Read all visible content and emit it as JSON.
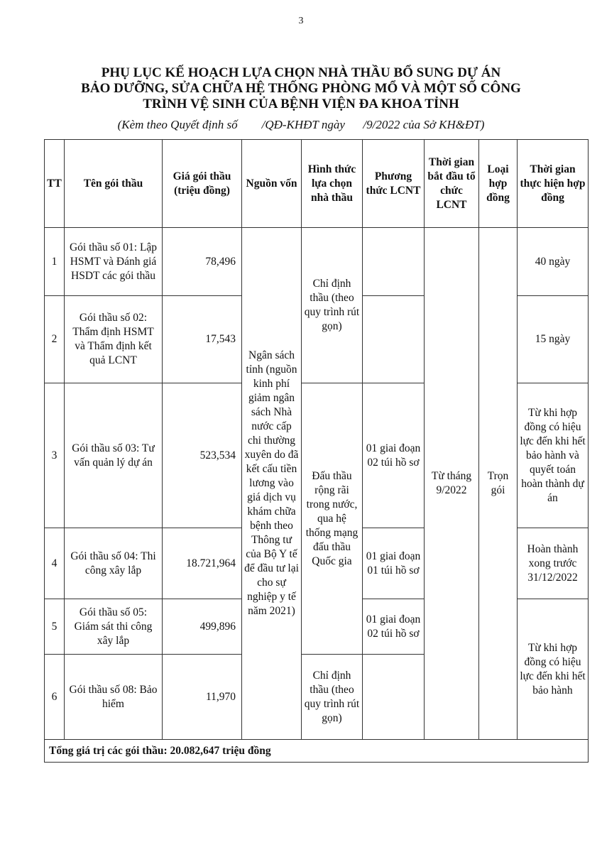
{
  "page_number": "3",
  "title_lines": [
    "PHỤ LỤC KẾ HOẠCH LỰA CHỌN NHÀ THẦU BỔ SUNG DỰ ÁN",
    "BẢO DƯỠNG, SỬA CHỮA HỆ THỐNG PHÒNG MỔ VÀ MỘT SỐ CÔNG",
    "TRÌNH VỆ SINH CỦA BỆNH VIỆN ĐA KHOA TỈNH"
  ],
  "subtitle": "(Kèm theo Quyết định số        /QĐ-KHĐT ngày      /9/2022 của Sở KH&ĐT)",
  "headers": [
    "TT",
    "Tên gói thầu",
    "Giá gói thầu (triệu đồng)",
    "Nguồn vốn",
    "Hình thức lựa chọn nhà thầu",
    "Phương thức LCNT",
    "Thời gian bắt đầu tổ chức LCNT",
    "Loại hợp đồng",
    "Thời gian thực hiện hợp đồng"
  ],
  "rows": [
    {
      "tt": "1",
      "name": "Gói thầu số 01: Lập HSMT và Đánh giá HSDT các gói thầu",
      "price": "78,496",
      "method": "",
      "duration": "40 ngày"
    },
    {
      "tt": "2",
      "name": "Gói thầu số 02: Thẩm định HSMT và Thẩm định kết quả LCNT",
      "price": "17,543",
      "method": "",
      "duration": "15 ngày"
    },
    {
      "tt": "3",
      "name": "Gói thầu số 03: Tư vấn quản lý dự án",
      "price": "523,534",
      "method": "01 giai đoạn 02 túi hồ sơ",
      "duration": "Từ khi hợp đồng có hiệu lực đến khi hết bảo hành và quyết toán hoàn thành dự án"
    },
    {
      "tt": "4",
      "name": "Gói thầu số 04: Thi công xây lắp",
      "price": "18.721,964",
      "method": "01 giai đoạn 01 túi hồ sơ",
      "duration": "Hoàn thành xong trước 31/12/2022"
    },
    {
      "tt": "5",
      "name": "Gói thầu số 05: Giám sát thi công xây lắp",
      "price": "499,896",
      "method": "01 giai đoạn 02 túi hồ sơ",
      "duration": "Từ khi hợp đồng có hiệu lực đến khi hết bảo hành"
    },
    {
      "tt": "6",
      "name": "Gói thầu số 08: Bảo hiểm",
      "price": "11,970",
      "method": ""
    }
  ],
  "funding_source": "Ngân sách tỉnh (nguồn kinh phí giảm ngân sách Nhà nước cấp chi thường xuyên do đã kết cấu tiền lương vào giá dịch vụ khám chữa bệnh theo Thông tư của Bộ Y tế để đầu tư lại cho sự nghiệp y tế năm 2021)",
  "selection_form_a": "Chỉ định thầu (theo quy trình rút gọn)",
  "selection_form_b": "Đấu thầu rộng rãi trong nước, qua hệ thống mạng đấu thầu Quốc gia",
  "selection_form_c": "Chỉ định thầu (theo quy trình rút gọn)",
  "start_time": "Từ tháng 9/2022",
  "contract_type": "Trọn gói",
  "total": "Tổng giá trị các gói thầu: 20.082,647 triệu đồng"
}
